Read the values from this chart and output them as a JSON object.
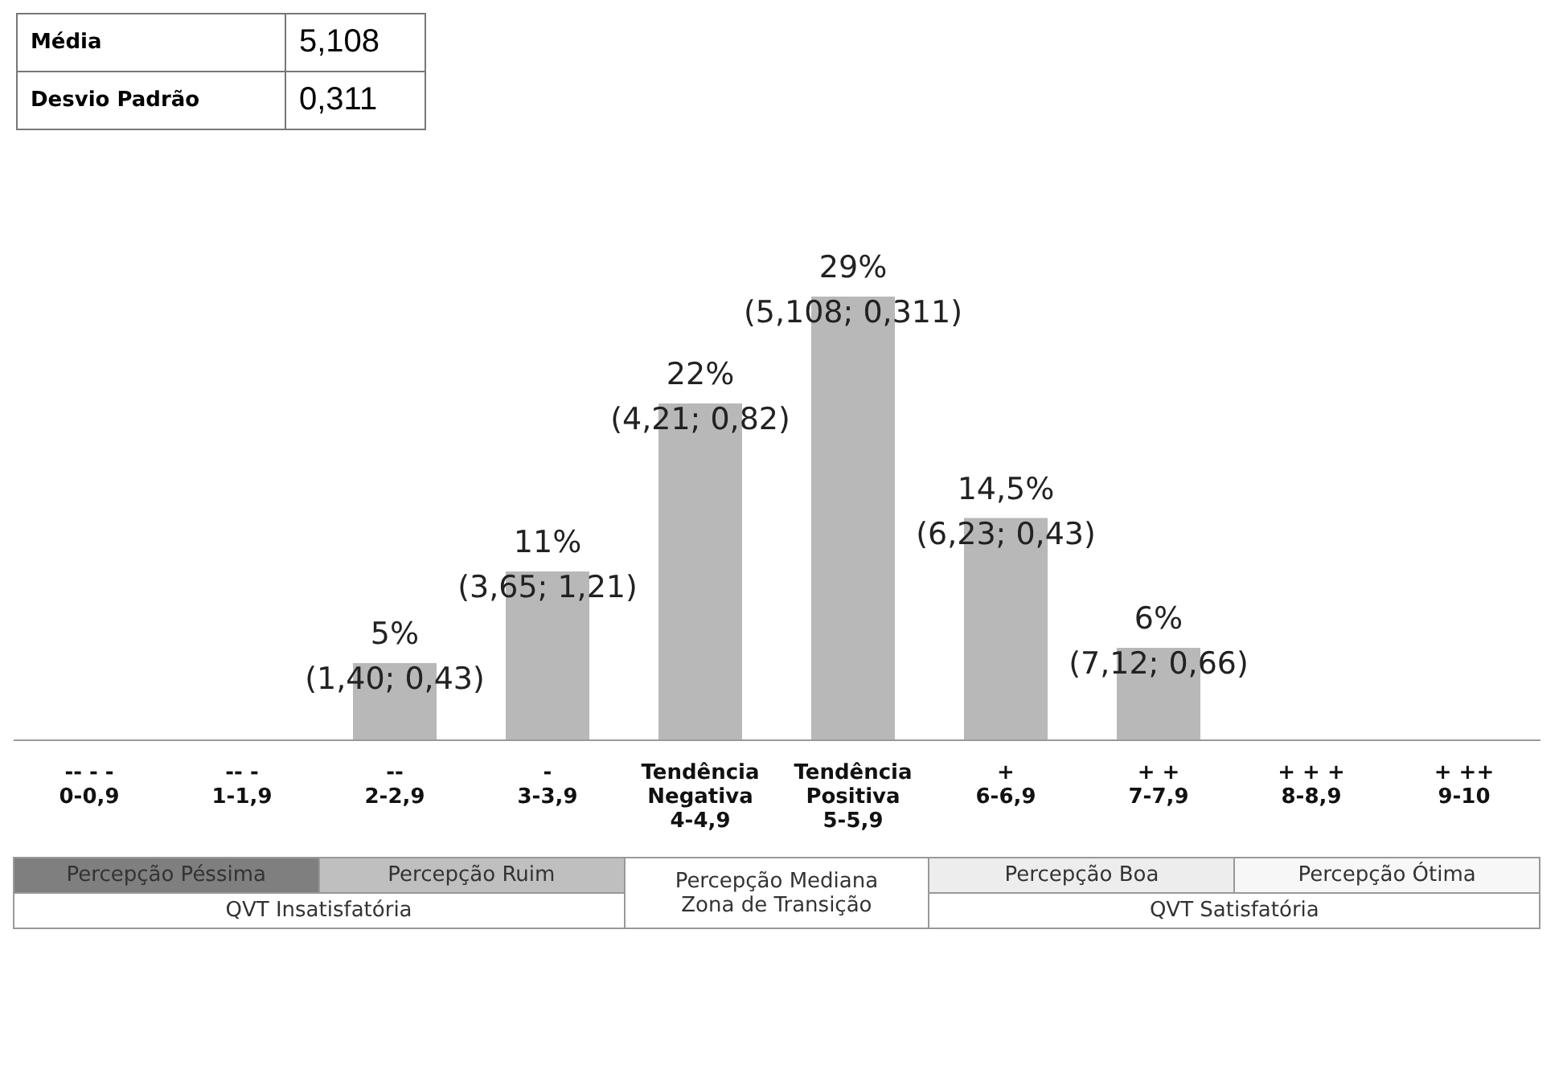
{
  "chart_data": {
    "type": "bar",
    "color": "#b8b8b8",
    "categories": [
      "-- - -\n0-0,9",
      "-- -\n1-1,9",
      "--\n2-2,9",
      "-\n3-3,9",
      "Tendência\nNegativa\n4-4,9",
      "Tendência\nPositiva\n5-5,9",
      "+\n6-6,9",
      "+ +\n7-7,9",
      "+ + +\n8-8,9",
      "+ ++\n9-10"
    ],
    "values": [
      null,
      null,
      5,
      11,
      22,
      29,
      14.5,
      6,
      null,
      null
    ],
    "value_labels": [
      null,
      null,
      "5%\n(1,40; 0,43)",
      "11%\n(3,65; 1,21)",
      "22%\n(4,21; 0,82)",
      "29%\n(5,108; 0,311)",
      "14,5%\n(6,23; 0,43)",
      "6%\n(7,12; 0,66)",
      null,
      null
    ],
    "annotations": [
      "Média",
      "5,108",
      "Desvio Padrão",
      "0,311",
      "Percepção Péssima",
      "Percepção Ruim",
      "Percepção Mediana\nZona de Transição",
      "Percepção Boa",
      "Percepção Ótima",
      "QVT Insatisfatória",
      "QVT Satisfatória"
    ],
    "grid": false
  }
}
